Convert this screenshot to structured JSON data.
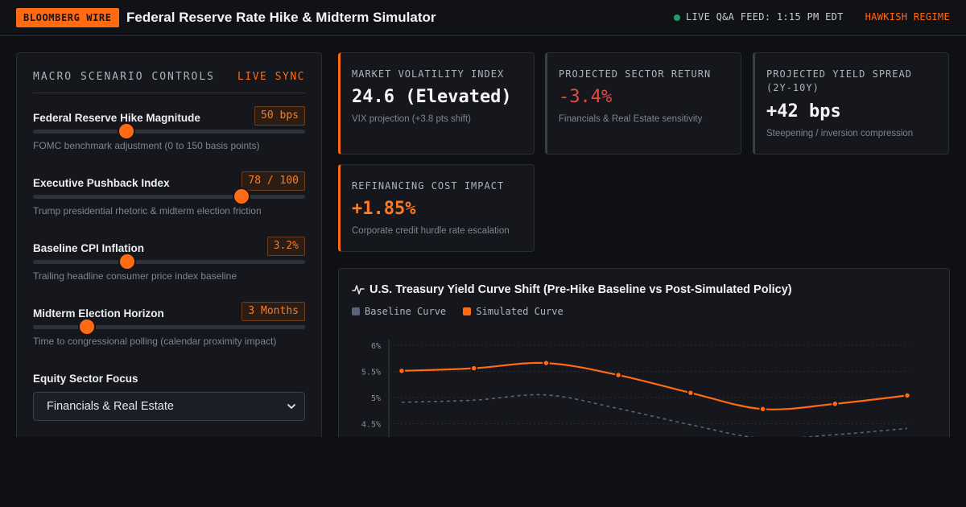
{
  "header": {
    "brand": "BLOOMBERG WIRE",
    "title": "Federal Reserve Rate Hike & Midterm Simulator",
    "live_feed": "LIVE Q&A FEED: 1:15 PM EDT",
    "regime": "HAWKISH REGIME"
  },
  "controls": {
    "title": "MACRO SCENARIO CONTROLS",
    "sync": "LIVE SYNC",
    "sliders": [
      {
        "label": "Federal Reserve Hike Magnitude",
        "value": "50 bps",
        "help": "FOMC benchmark adjustment (0 to 150 basis points)",
        "fraction": 0.343
      },
      {
        "label": "Executive Pushback Index",
        "value": "78 / 100",
        "help": "Trump presidential rhetoric & midterm election friction",
        "fraction": 0.766
      },
      {
        "label": "Baseline CPI Inflation",
        "value": "3.2%",
        "help": "Trailing headline consumer price index baseline",
        "fraction": 0.346
      },
      {
        "label": "Midterm Election Horizon",
        "value": "3 Months",
        "help": "Time to congressional polling (calendar proximity impact)",
        "fraction": 0.198
      }
    ],
    "sector_label": "Equity Sector Focus",
    "sector_value": "Financials & Real Estate"
  },
  "metrics": [
    {
      "title": "MARKET VOLATILITY INDEX",
      "value": "24.6 (Elevated)",
      "sub": "VIX projection (+3.8 pts shift)"
    },
    {
      "title": "PROJECTED SECTOR RETURN",
      "value": "-3.4%",
      "sub": "Financials & Real Estate sensitivity"
    },
    {
      "title": "PROJECTED YIELD SPREAD (2Y-10Y)",
      "value": "+42 bps",
      "sub": "Steepening / inversion compression"
    },
    {
      "title": "REFINANCING COST IMPACT",
      "value": "+1.85%",
      "sub": "Corporate credit hurdle rate escalation"
    }
  ],
  "colors": {
    "accent": "#ff6a13",
    "baseline": "#5b6476",
    "negative": "#e04c42",
    "live": "#1f9d6a"
  },
  "chart": {
    "icon": "activity-pulse-icon",
    "title": "U.S. Treasury Yield Curve Shift (Pre-Hike Baseline vs Post-Simulated Policy)"
  },
  "chart_data": {
    "type": "line",
    "title": "U.S. Treasury Yield Curve Shift (Pre-Hike Baseline vs Post-Simulated Policy)",
    "xlabel": "",
    "ylabel": "",
    "y_ticks": [
      "6%",
      "5.5%",
      "5%",
      "4.5%"
    ],
    "y_tick_values": [
      6,
      5.5,
      5,
      4.5
    ],
    "ylim": [
      4.3,
      6.05
    ],
    "legend_position": "top-left",
    "grid": true,
    "series": [
      {
        "name": "Baseline Curve",
        "color": "#5b6476",
        "style": "dashed",
        "markers": false,
        "values": [
          4.91,
          4.95,
          5.05,
          4.79,
          4.48,
          4.22,
          4.29,
          4.41
        ]
      },
      {
        "name": "Simulated Curve",
        "color": "#ff6a13",
        "style": "solid",
        "markers": true,
        "values": [
          5.51,
          5.56,
          5.66,
          5.43,
          5.09,
          4.78,
          4.88,
          5.04
        ]
      }
    ]
  }
}
